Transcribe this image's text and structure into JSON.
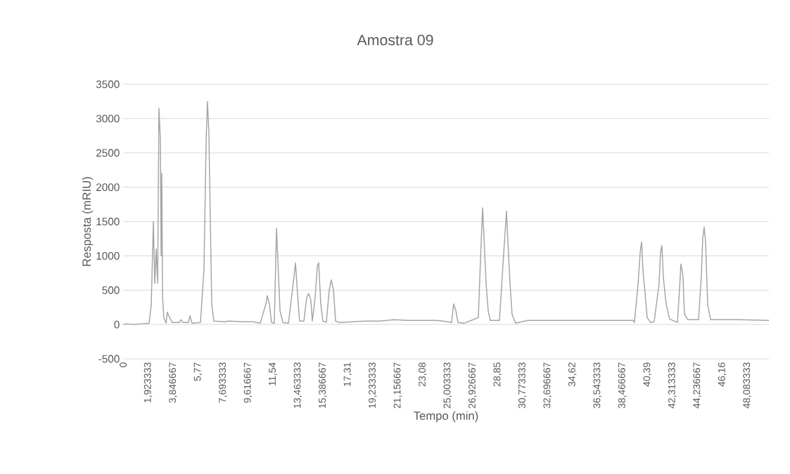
{
  "chart_data": {
    "type": "line",
    "title": "Amostra 09",
    "xlabel": "Tempo (min)",
    "ylabel": "Resposta (mRIU)",
    "grid": "y",
    "marker": "none",
    "line_style": "solid",
    "xlim": [
      0,
      49.76
    ],
    "ylim": [
      -500,
      3500
    ],
    "xticks": [
      0,
      {
        "value": 1.923333,
        "label": "1,923333"
      },
      {
        "value": 3.846667,
        "label": "3,846667"
      },
      {
        "value": 5.77,
        "label": "5,77"
      },
      {
        "value": 7.693333,
        "label": "7,693333"
      },
      {
        "value": 9.616667,
        "label": "9,616667"
      },
      {
        "value": 11.54,
        "label": "11,54"
      },
      {
        "value": 13.463333,
        "label": "13,463333"
      },
      {
        "value": 15.386667,
        "label": "15,386667"
      },
      {
        "value": 17.31,
        "label": "17,31"
      },
      {
        "value": 19.233333,
        "label": "19,233333"
      },
      {
        "value": 21.156667,
        "label": "21,156667"
      },
      {
        "value": 23.08,
        "label": "23,08"
      },
      {
        "value": 25.003333,
        "label": "25,003333"
      },
      {
        "value": 26.926667,
        "label": "26,926667"
      },
      {
        "value": 28.85,
        "label": "28,85"
      },
      {
        "value": 30.773333,
        "label": "30,773333"
      },
      {
        "value": 32.696667,
        "label": "32,696667"
      },
      {
        "value": 34.62,
        "label": "34,62"
      },
      {
        "value": 36.543333,
        "label": "36,543333"
      },
      {
        "value": 38.466667,
        "label": "38,466667"
      },
      {
        "value": 40.39,
        "label": "40,39"
      },
      {
        "value": 42.313333,
        "label": "42,313333"
      },
      {
        "value": 44.236667,
        "label": "44,236667"
      },
      {
        "value": 46.16,
        "label": "46,16"
      },
      {
        "value": 48.083333,
        "label": "48,083333"
      }
    ],
    "yticks": [
      -500,
      0,
      500,
      1000,
      1500,
      2000,
      2500,
      3000,
      3500
    ],
    "series": [
      {
        "color": "#a5a5a5",
        "x": [
          0,
          0.27,
          0.81,
          1.36,
          2.01,
          2.17,
          2.33,
          2.44,
          2.55,
          2.66,
          2.71,
          2.76,
          2.87,
          2.93,
          2.98,
          3.04,
          3.14,
          3.31,
          3.41,
          3.58,
          3.79,
          4.34,
          4.44,
          4.61,
          5.04,
          5.15,
          5.31,
          5.96,
          6.23,
          6.4,
          6.5,
          6.61,
          6.72,
          6.83,
          6.99,
          7.86,
          8.13,
          9.21,
          10.03,
          10.57,
          11.0,
          11.11,
          11.27,
          11.44,
          11.65,
          11.82,
          11.92,
          12.09,
          12.31,
          12.74,
          13.17,
          13.28,
          13.44,
          13.6,
          13.93,
          14.15,
          14.31,
          14.47,
          14.58,
          14.8,
          14.96,
          15.07,
          15.23,
          15.39,
          15.66,
          15.88,
          16.04,
          16.21,
          16.37,
          16.64,
          17.62,
          18.7,
          19.78,
          20.87,
          21.95,
          23.04,
          24.12,
          24.66,
          25.31,
          25.47,
          25.64,
          25.8,
          26.29,
          26.83,
          27.37,
          27.59,
          27.7,
          27.81,
          27.97,
          28.13,
          28.29,
          29.0,
          29.38,
          29.54,
          29.65,
          29.81,
          29.97,
          30.24,
          31.17,
          32.79,
          33.88,
          34.96,
          37.13,
          39.3,
          39.4,
          39.68,
          39.84,
          39.95,
          40.05,
          40.22,
          40.38,
          40.65,
          40.92,
          41.3,
          41.41,
          41.52,
          41.62,
          41.84,
          42.11,
          42.71,
          42.87,
          42.98,
          43.14,
          43.25,
          43.52,
          44.34,
          44.55,
          44.66,
          44.77,
          44.88,
          45.04,
          45.26,
          47.43,
          49.76
        ],
        "values": [
          0,
          10,
          0,
          10,
          20,
          300,
          1500,
          600,
          1100,
          600,
          1800,
          3150,
          2700,
          1000,
          2200,
          400,
          100,
          20,
          180,
          100,
          30,
          30,
          70,
          30,
          30,
          130,
          20,
          30,
          800,
          2700,
          3250,
          2800,
          1500,
          300,
          50,
          40,
          50,
          40,
          40,
          20,
          300,
          420,
          300,
          30,
          20,
          1400,
          950,
          200,
          30,
          20,
          700,
          900,
          450,
          50,
          50,
          400,
          450,
          350,
          50,
          400,
          850,
          900,
          300,
          50,
          30,
          500,
          650,
          500,
          50,
          30,
          40,
          50,
          50,
          70,
          60,
          60,
          60,
          50,
          30,
          300,
          200,
          30,
          20,
          60,
          100,
          1200,
          1700,
          1250,
          600,
          200,
          60,
          60,
          1200,
          1650,
          1200,
          600,
          150,
          20,
          60,
          60,
          60,
          60,
          60,
          60,
          30,
          600,
          1050,
          1200,
          800,
          450,
          100,
          30,
          40,
          600,
          1050,
          1150,
          700,
          300,
          80,
          30,
          500,
          880,
          700,
          150,
          70,
          70,
          700,
          1250,
          1420,
          1200,
          300,
          70,
          70,
          60
        ]
      }
    ]
  }
}
